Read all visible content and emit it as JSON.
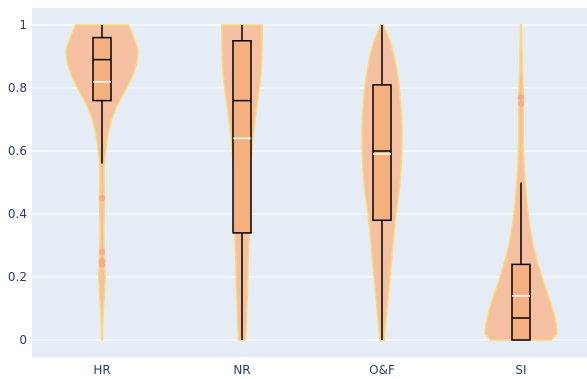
{
  "chart_data": {
    "type": "violin",
    "title": "",
    "xlabel": "",
    "ylabel": "",
    "ylim": [
      -0.05,
      1.0
    ],
    "yticks": [
      0,
      0.2,
      0.4,
      0.6,
      0.8,
      1
    ],
    "ytick_labels": [
      "0",
      "0.2",
      "0.4",
      "0.6",
      "0.8",
      "1"
    ],
    "grid": true,
    "colors": {
      "plot_bg": "#e5ecf6",
      "grid": "#ffffff",
      "violin_fill": "#f4c0a1",
      "violin_line": "#fada78",
      "box_fill": "#f5b07f",
      "box_line": "#000000",
      "mean_line": "#ffffff",
      "outlier": "#f5a98a",
      "tick_text": "#2a3f5f"
    },
    "categories": [
      "HR",
      "NR",
      "O&F",
      "SI"
    ],
    "violins": [
      {
        "category": "HR",
        "min": 0.56,
        "q1": 0.76,
        "median": 0.89,
        "q3": 0.96,
        "max": 1.0,
        "mean": 0.82,
        "outliers": [
          0.45,
          0.28,
          0.25,
          0.24
        ],
        "y_min": 0.0,
        "y_max": 1.0,
        "density": [
          [
            0.0,
            0.01
          ],
          [
            0.05,
            0.02
          ],
          [
            0.1,
            0.04
          ],
          [
            0.15,
            0.07
          ],
          [
            0.2,
            0.09
          ],
          [
            0.25,
            0.08
          ],
          [
            0.3,
            0.06
          ],
          [
            0.35,
            0.05
          ],
          [
            0.4,
            0.06
          ],
          [
            0.45,
            0.07
          ],
          [
            0.5,
            0.06
          ],
          [
            0.55,
            0.06
          ],
          [
            0.6,
            0.1
          ],
          [
            0.65,
            0.16
          ],
          [
            0.7,
            0.26
          ],
          [
            0.75,
            0.44
          ],
          [
            0.8,
            0.68
          ],
          [
            0.84,
            0.85
          ],
          [
            0.88,
            0.97
          ],
          [
            0.92,
            1.0
          ],
          [
            0.96,
            0.88
          ],
          [
            1.0,
            0.74
          ]
        ]
      },
      {
        "category": "NR",
        "min": 0.0,
        "q1": 0.34,
        "median": 0.76,
        "q3": 0.95,
        "max": 1.0,
        "mean": 0.64,
        "outliers": [],
        "y_min": 0.0,
        "y_max": 1.0,
        "density": [
          [
            0.0,
            0.1
          ],
          [
            0.05,
            0.12
          ],
          [
            0.1,
            0.13
          ],
          [
            0.15,
            0.15
          ],
          [
            0.2,
            0.16
          ],
          [
            0.25,
            0.17
          ],
          [
            0.3,
            0.19
          ],
          [
            0.35,
            0.2
          ],
          [
            0.4,
            0.2
          ],
          [
            0.45,
            0.2
          ],
          [
            0.5,
            0.21
          ],
          [
            0.55,
            0.24
          ],
          [
            0.6,
            0.27
          ],
          [
            0.65,
            0.31
          ],
          [
            0.7,
            0.36
          ],
          [
            0.75,
            0.42
          ],
          [
            0.8,
            0.48
          ],
          [
            0.85,
            0.53
          ],
          [
            0.9,
            0.55
          ],
          [
            0.95,
            0.56
          ],
          [
            1.0,
            0.56
          ]
        ]
      },
      {
        "category": "O&F",
        "min": 0.0,
        "q1": 0.38,
        "median": 0.6,
        "q3": 0.81,
        "max": 1.0,
        "mean": 0.59,
        "outliers": [],
        "y_min": 0.0,
        "y_max": 1.0,
        "density": [
          [
            0.0,
            0.06
          ],
          [
            0.05,
            0.1
          ],
          [
            0.1,
            0.14
          ],
          [
            0.15,
            0.18
          ],
          [
            0.2,
            0.22
          ],
          [
            0.25,
            0.26
          ],
          [
            0.3,
            0.3
          ],
          [
            0.35,
            0.34
          ],
          [
            0.4,
            0.39
          ],
          [
            0.45,
            0.45
          ],
          [
            0.5,
            0.5
          ],
          [
            0.55,
            0.53
          ],
          [
            0.6,
            0.55
          ],
          [
            0.65,
            0.56
          ],
          [
            0.7,
            0.55
          ],
          [
            0.75,
            0.52
          ],
          [
            0.8,
            0.48
          ],
          [
            0.85,
            0.42
          ],
          [
            0.9,
            0.34
          ],
          [
            0.95,
            0.22
          ],
          [
            1.0,
            0.04
          ]
        ]
      },
      {
        "category": "SI",
        "min": 0.0,
        "q1": 0.0,
        "median": 0.07,
        "q3": 0.24,
        "max": 0.5,
        "mean": 0.14,
        "outliers": [
          0.77,
          0.75
        ],
        "y_min": 0.0,
        "y_max": 1.0,
        "density": [
          [
            0.0,
            0.85
          ],
          [
            0.02,
            1.0
          ],
          [
            0.05,
            0.98
          ],
          [
            0.08,
            0.92
          ],
          [
            0.12,
            0.82
          ],
          [
            0.16,
            0.7
          ],
          [
            0.2,
            0.58
          ],
          [
            0.25,
            0.45
          ],
          [
            0.3,
            0.34
          ],
          [
            0.35,
            0.26
          ],
          [
            0.4,
            0.2
          ],
          [
            0.45,
            0.15
          ],
          [
            0.5,
            0.12
          ],
          [
            0.55,
            0.09
          ],
          [
            0.6,
            0.07
          ],
          [
            0.65,
            0.06
          ],
          [
            0.7,
            0.06
          ],
          [
            0.75,
            0.07
          ],
          [
            0.8,
            0.06
          ],
          [
            0.85,
            0.04
          ],
          [
            0.9,
            0.03
          ],
          [
            0.95,
            0.02
          ],
          [
            1.0,
            0.01
          ]
        ]
      }
    ]
  }
}
